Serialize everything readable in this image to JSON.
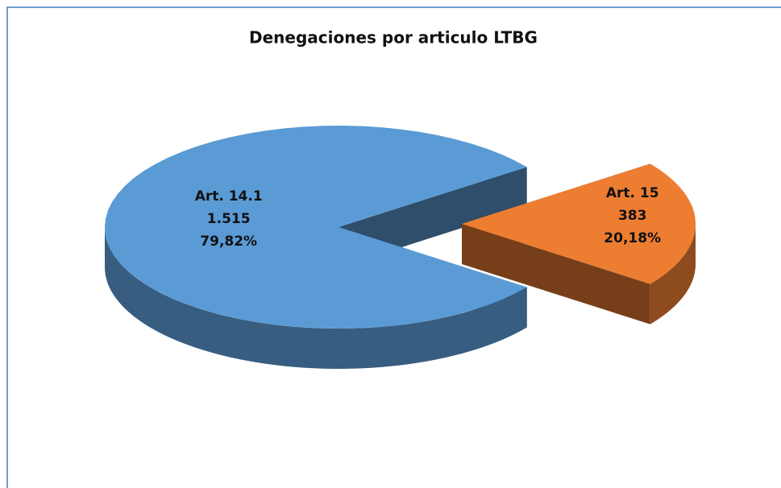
{
  "chart_data": {
    "type": "pie3d",
    "title": "Denegaciones por articulo LTBG",
    "categories": [
      "Art. 14.1",
      "Art. 15"
    ],
    "values": [
      1515,
      383
    ],
    "value_labels": [
      "1.515",
      "383"
    ],
    "percents": [
      79.82,
      20.18
    ],
    "percent_labels": [
      "79,82%",
      "20,18%"
    ],
    "colors": [
      "#5b9bd5",
      "#ed7d31"
    ]
  }
}
